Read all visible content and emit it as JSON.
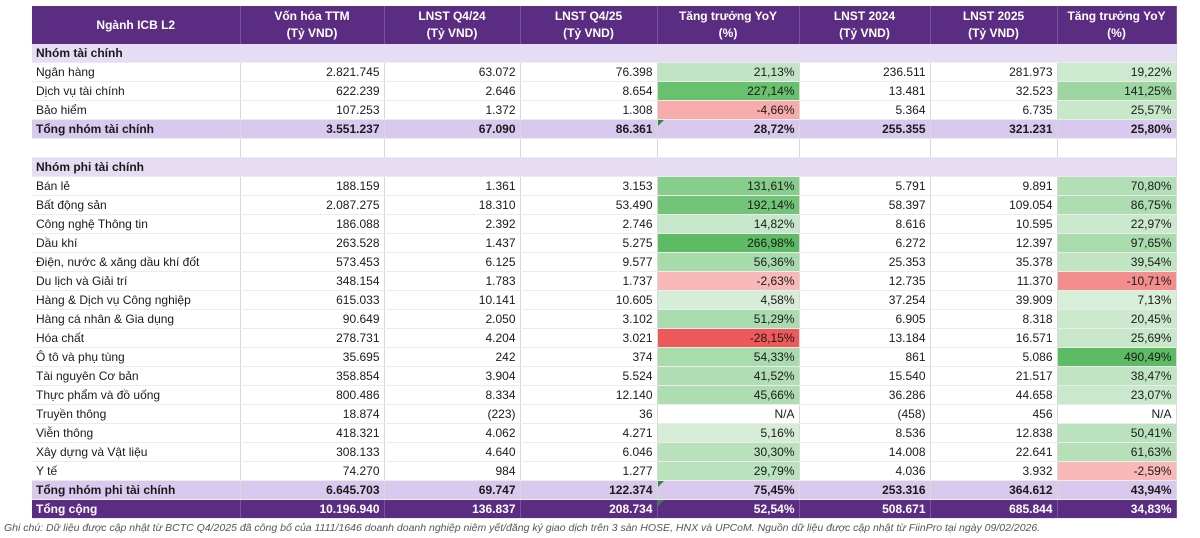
{
  "header": {
    "columns": [
      {
        "l1": "Ngành ICB L2",
        "l2": ""
      },
      {
        "l1": "Vốn hóa TTM",
        "l2": "(Tỷ VND)"
      },
      {
        "l1": "LNST Q4/24",
        "l2": "(Tỷ VND)"
      },
      {
        "l1": "LNST Q4/25",
        "l2": "(Tỷ VND)"
      },
      {
        "l1": "Tăng trưởng YoY",
        "l2": "(%)"
      },
      {
        "l1": "LNST 2024",
        "l2": "(Tỷ VND)"
      },
      {
        "l1": "LNST 2025",
        "l2": "(Tỷ VND)"
      },
      {
        "l1": "Tăng trưởng YoY",
        "l2": "(%)"
      }
    ]
  },
  "colors": {
    "pos_strong": "#5dbb63",
    "pos_light": "#e8f5e9",
    "neg_strong": "#ee5555",
    "neg_light": "#fde3e3"
  },
  "rows": [
    {
      "kind": "group",
      "name": "Nhóm tài chính"
    },
    {
      "kind": "data",
      "name": "Ngân hàng",
      "cap": "2.821.745",
      "q424": "63.072",
      "q425": "76.398",
      "yoy_q": "21,13%",
      "yoy_q_val": 21.13,
      "y24": "236.511",
      "y25": "281.973",
      "yoy_y": "19,22%",
      "yoy_y_val": 19.22
    },
    {
      "kind": "data",
      "name": "Dịch vụ tài chính",
      "cap": "622.239",
      "q424": "2.646",
      "q425": "8.654",
      "yoy_q": "227,14%",
      "yoy_q_val": 227.14,
      "y24": "13.481",
      "y25": "32.523",
      "yoy_y": "141,25%",
      "yoy_y_val": 141.25
    },
    {
      "kind": "data",
      "name": "Bảo hiểm",
      "cap": "107.253",
      "q424": "1.372",
      "q425": "1.308",
      "yoy_q": "-4,66%",
      "yoy_q_val": -4.66,
      "y24": "5.364",
      "y25": "6.735",
      "yoy_y": "25,57%",
      "yoy_y_val": 25.57
    },
    {
      "kind": "total",
      "name": "Tổng nhóm tài chính",
      "cap": "3.551.237",
      "q424": "67.090",
      "q425": "86.361",
      "yoy_q": "28,72%",
      "y24": "255.355",
      "y25": "321.231",
      "yoy_y": "25,80%"
    },
    {
      "kind": "blank"
    },
    {
      "kind": "group",
      "name": "Nhóm phi tài chính"
    },
    {
      "kind": "data",
      "name": "Bán lẻ",
      "cap": "188.159",
      "q424": "1.361",
      "q425": "3.153",
      "yoy_q": "131,61%",
      "yoy_q_val": 131.61,
      "y24": "5.791",
      "y25": "9.891",
      "yoy_y": "70,80%",
      "yoy_y_val": 70.8
    },
    {
      "kind": "data",
      "name": "Bất động sản",
      "cap": "2.087.275",
      "q424": "18.310",
      "q425": "53.490",
      "yoy_q": "192,14%",
      "yoy_q_val": 192.14,
      "y24": "58.397",
      "y25": "109.054",
      "yoy_y": "86,75%",
      "yoy_y_val": 86.75
    },
    {
      "kind": "data",
      "name": "Công nghệ Thông tin",
      "cap": "186.088",
      "q424": "2.392",
      "q425": "2.746",
      "yoy_q": "14,82%",
      "yoy_q_val": 14.82,
      "y24": "8.616",
      "y25": "10.595",
      "yoy_y": "22,97%",
      "yoy_y_val": 22.97
    },
    {
      "kind": "data",
      "name": "Dầu khí",
      "cap": "263.528",
      "q424": "1.437",
      "q425": "5.275",
      "yoy_q": "266,98%",
      "yoy_q_val": 266.98,
      "y24": "6.272",
      "y25": "12.397",
      "yoy_y": "97,65%",
      "yoy_y_val": 97.65
    },
    {
      "kind": "data",
      "name": "Điện, nước & xăng dầu khí đốt",
      "cap": "573.453",
      "q424": "6.125",
      "q425": "9.577",
      "yoy_q": "56,36%",
      "yoy_q_val": 56.36,
      "y24": "25.353",
      "y25": "35.378",
      "yoy_y": "39,54%",
      "yoy_y_val": 39.54
    },
    {
      "kind": "data",
      "name": "Du lịch và Giải trí",
      "cap": "348.154",
      "q424": "1.783",
      "q425": "1.737",
      "yoy_q": "-2,63%",
      "yoy_q_val": -2.63,
      "y24": "12.735",
      "y25": "11.370",
      "yoy_y": "-10,71%",
      "yoy_y_val": -10.71
    },
    {
      "kind": "data",
      "name": "Hàng & Dịch vụ Công nghiệp",
      "cap": "615.033",
      "q424": "10.141",
      "q425": "10.605",
      "yoy_q": "4,58%",
      "yoy_q_val": 4.58,
      "y24": "37.254",
      "y25": "39.909",
      "yoy_y": "7,13%",
      "yoy_y_val": 7.13
    },
    {
      "kind": "data",
      "name": "Hàng cá nhân & Gia dụng",
      "cap": "90.649",
      "q424": "2.050",
      "q425": "3.102",
      "yoy_q": "51,29%",
      "yoy_q_val": 51.29,
      "y24": "6.905",
      "y25": "8.318",
      "yoy_y": "20,45%",
      "yoy_y_val": 20.45
    },
    {
      "kind": "data",
      "name": "Hóa chất",
      "cap": "278.731",
      "q424": "4.204",
      "q425": "3.021",
      "yoy_q": "-28,15%",
      "yoy_q_val": -28.15,
      "y24": "13.184",
      "y25": "16.571",
      "yoy_y": "25,69%",
      "yoy_y_val": 25.69
    },
    {
      "kind": "data",
      "name": "Ô tô và phụ tùng",
      "cap": "35.695",
      "q424": "242",
      "q425": "374",
      "yoy_q": "54,33%",
      "yoy_q_val": 54.33,
      "y24": "861",
      "y25": "5.086",
      "yoy_y": "490,49%",
      "yoy_y_val": 490.49
    },
    {
      "kind": "data",
      "name": "Tài nguyên Cơ bản",
      "cap": "358.854",
      "q424": "3.904",
      "q425": "5.524",
      "yoy_q": "41,52%",
      "yoy_q_val": 41.52,
      "y24": "15.540",
      "y25": "21.517",
      "yoy_y": "38,47%",
      "yoy_y_val": 38.47
    },
    {
      "kind": "data",
      "name": "Thực phẩm và đồ uống",
      "cap": "800.486",
      "q424": "8.334",
      "q425": "12.140",
      "yoy_q": "45,66%",
      "yoy_q_val": 45.66,
      "y24": "36.286",
      "y25": "44.658",
      "yoy_y": "23,07%",
      "yoy_y_val": 23.07
    },
    {
      "kind": "data",
      "name": "Truyền thông",
      "cap": "18.874",
      "q424": "(223)",
      "q425": "36",
      "yoy_q": "N/A",
      "yoy_q_val": null,
      "y24": "(458)",
      "y25": "456",
      "yoy_y": "N/A",
      "yoy_y_val": null
    },
    {
      "kind": "data",
      "name": "Viễn thông",
      "cap": "418.321",
      "q424": "4.062",
      "q425": "4.271",
      "yoy_q": "5,16%",
      "yoy_q_val": 5.16,
      "y24": "8.536",
      "y25": "12.838",
      "yoy_y": "50,41%",
      "yoy_y_val": 50.41
    },
    {
      "kind": "data",
      "name": "Xây dựng và Vật liệu",
      "cap": "308.133",
      "q424": "4.640",
      "q425": "6.046",
      "yoy_q": "30,30%",
      "yoy_q_val": 30.3,
      "y24": "14.008",
      "y25": "22.641",
      "yoy_y": "61,63%",
      "yoy_y_val": 61.63
    },
    {
      "kind": "data",
      "name": "Y tế",
      "cap": "74.270",
      "q424": "984",
      "q425": "1.277",
      "yoy_q": "29,79%",
      "yoy_q_val": 29.79,
      "y24": "4.036",
      "y25": "3.932",
      "yoy_y": "-2,59%",
      "yoy_y_val": -2.59
    },
    {
      "kind": "total",
      "name": "Tổng nhóm phi tài chính",
      "cap": "6.645.703",
      "q424": "69.747",
      "q425": "122.374",
      "yoy_q": "75,45%",
      "y24": "253.316",
      "y25": "364.612",
      "yoy_y": "43,94%"
    },
    {
      "kind": "grand",
      "name": "Tổng cộng",
      "cap": "10.196.940",
      "q424": "136.837",
      "q425": "208.734",
      "yoy_q": "52,54%",
      "y24": "508.671",
      "y25": "685.844",
      "yoy_y": "34,83%"
    }
  ],
  "footnote": "Ghi chú: Dữ liệu được cập nhật từ BCTC Q4/2025 đã công bố của 1111/1646 doanh doanh nghiệp niêm yết/đăng ký giao dịch trên 3 sàn HOSE, HNX và UPCoM. Nguồn dữ liệu được cập nhật từ FiinPro tại ngày 09/02/2026."
}
